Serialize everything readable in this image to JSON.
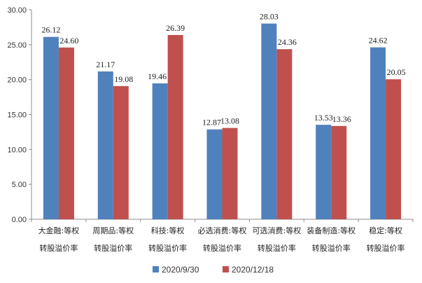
{
  "chart_data": {
    "type": "bar",
    "title": "",
    "xlabel": "",
    "ylabel": "",
    "ylim": [
      0,
      30
    ],
    "yticks": [
      "0.00",
      "5.00",
      "10.00",
      "15.00",
      "20.00",
      "25.00",
      "30.00"
    ],
    "ytick_values": [
      0,
      5,
      10,
      15,
      20,
      25,
      30
    ],
    "grid": false,
    "legend_position": "bottom",
    "categories": [
      [
        "大金融:等权",
        "转股溢价率"
      ],
      [
        "周期品:等权",
        "转股溢价率"
      ],
      [
        "科技:等权",
        "转股溢价率"
      ],
      [
        "必选消费:等权",
        "转股溢价率"
      ],
      [
        "可选消费:等权",
        "转股溢价率"
      ],
      [
        "装备制造:等权",
        "转股溢价率"
      ],
      [
        "稳定:等权",
        "转股溢价率"
      ]
    ],
    "series": [
      {
        "name": "2020/9/30",
        "color": "#4f81bd",
        "values": [
          26.12,
          21.17,
          19.46,
          12.87,
          28.03,
          13.53,
          24.62
        ],
        "labels": [
          "26.12",
          "21.17",
          "19.46",
          "12.87",
          "28.03",
          "13.53",
          "24.62"
        ]
      },
      {
        "name": "2020/12/18",
        "color": "#c0504d",
        "values": [
          24.6,
          19.08,
          26.39,
          13.08,
          24.36,
          13.36,
          20.05
        ],
        "labels": [
          "24.60",
          "19.08",
          "26.39",
          "13.08",
          "24.36",
          "13.36",
          "20.05"
        ]
      }
    ]
  }
}
